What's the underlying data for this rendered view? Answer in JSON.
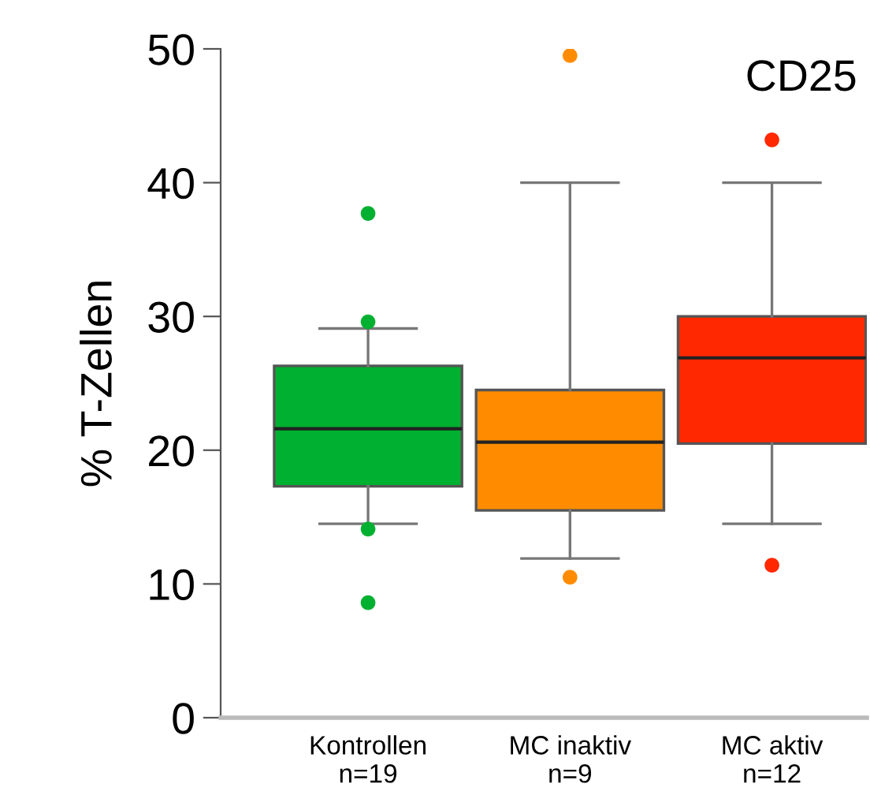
{
  "chart_data": {
    "type": "box",
    "ylabel": "% T-Zellen",
    "categories": [
      "Kontrollen\nn=19",
      "MC inaktiv\nn=9",
      "MC aktiv\nn=12"
    ],
    "colors": [
      "#00b030",
      "#ff8c00",
      "#ff2800"
    ],
    "boxes": [
      {
        "low": 14.5,
        "q1": 17.3,
        "median": 21.6,
        "q3": 26.3,
        "high": 29.1,
        "outliers": [
          37.7,
          29.6,
          14.1,
          8.6
        ]
      },
      {
        "low": 11.9,
        "q1": 15.5,
        "median": 20.6,
        "q3": 24.5,
        "high": 40.0,
        "outliers": [
          49.5,
          10.5
        ]
      },
      {
        "low": 14.5,
        "q1": 20.5,
        "median": 26.9,
        "q3": 30.0,
        "high": 40.0,
        "outliers": [
          43.2,
          11.4
        ]
      }
    ],
    "ylim": [
      0,
      50
    ],
    "yticks": [
      0,
      10,
      20,
      30,
      40,
      50
    ],
    "annotations": [
      "CD25"
    ]
  }
}
